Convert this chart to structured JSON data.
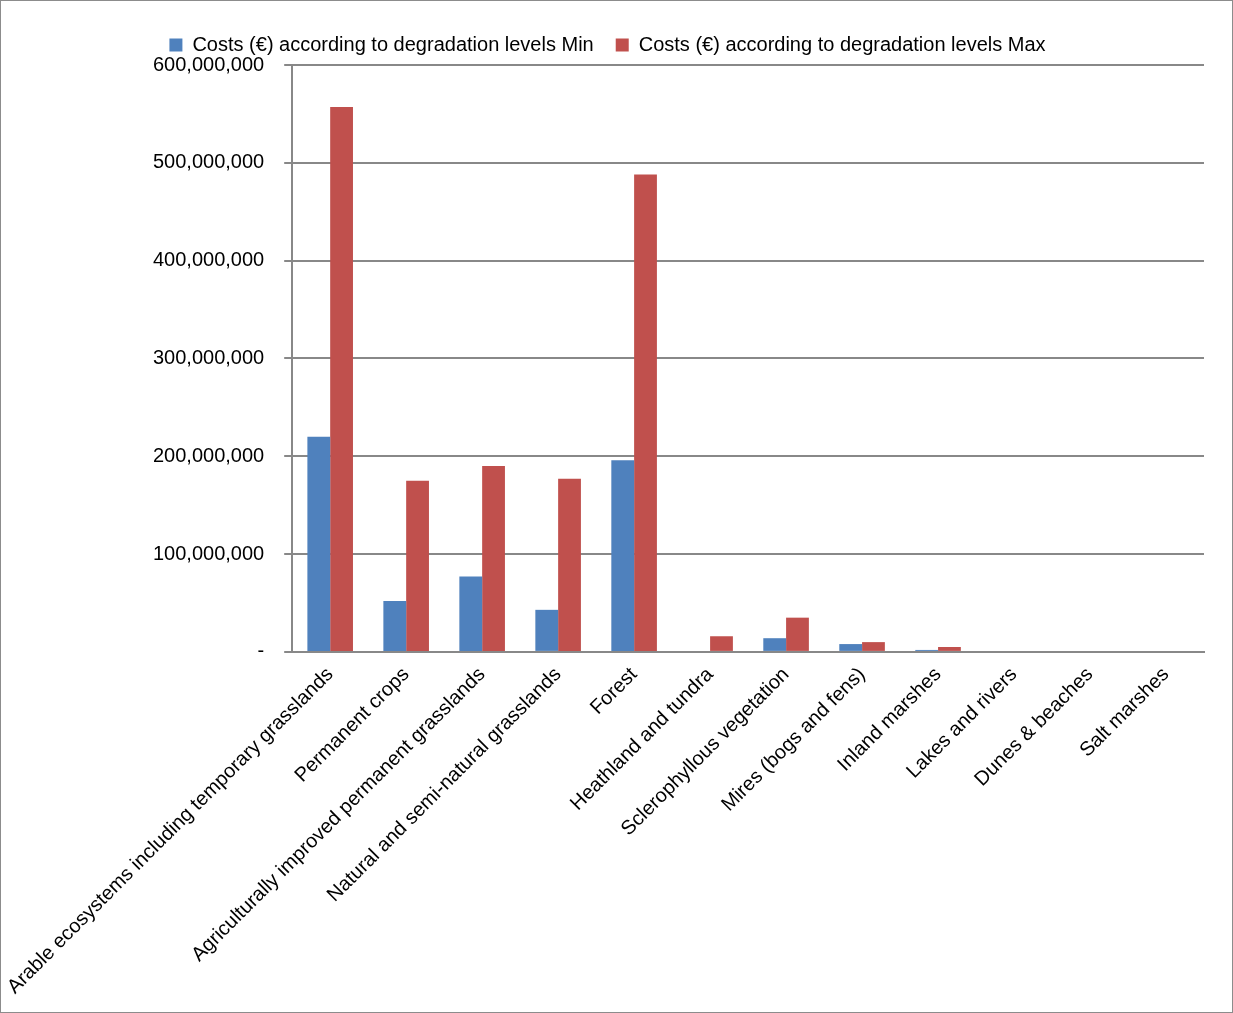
{
  "chart_data": {
    "type": "bar",
    "categories": [
      "Arable ecosystems including temporary grasslands",
      "Permanent crops",
      "Agriculturally improved permanent grasslands",
      "Natural and semi-natural grasslands",
      "Forest",
      "Heathland and tundra",
      "Sclerophyllous vegetation",
      "Mires (bogs and fens)",
      "Inland marshes",
      "Lakes and rivers",
      "Dunes & beaches",
      "Salt marshes"
    ],
    "series": [
      {
        "name": "Costs (€) according to degradation levels Min",
        "color": "#4f81bd",
        "values": [
          220000000,
          52000000,
          77000000,
          43000000,
          196000000,
          1000000,
          14000000,
          8000000,
          2000000,
          0,
          0,
          0
        ]
      },
      {
        "name": "Costs (€) according to degradation levels Max",
        "color": "#c0504d",
        "values": [
          557000000,
          175000000,
          190000000,
          177000000,
          488000000,
          16000000,
          35000000,
          10000000,
          5000000,
          0,
          1000000,
          0
        ]
      }
    ],
    "ylim": [
      0,
      600000000
    ],
    "yticks": [
      {
        "value": 0,
        "label": "-"
      },
      {
        "value": 100000000,
        "label": "100,000,000"
      },
      {
        "value": 200000000,
        "label": "200,000,000"
      },
      {
        "value": 300000000,
        "label": "300,000,000"
      },
      {
        "value": 400000000,
        "label": "400,000,000"
      },
      {
        "value": 500000000,
        "label": "500,000,000"
      },
      {
        "value": 600000000,
        "label": "600,000,000"
      }
    ],
    "grid": "y",
    "legend": "top"
  }
}
